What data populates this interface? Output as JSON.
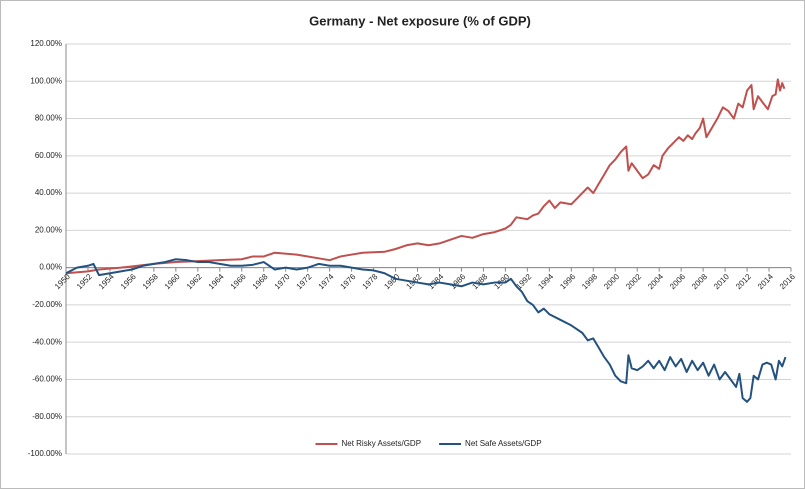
{
  "chart_data": {
    "type": "line",
    "title": "Germany - Net exposure (% of GDP)",
    "xlim": [
      1950,
      2016
    ],
    "xticks": [
      1950,
      1952,
      1954,
      1956,
      1958,
      1960,
      1962,
      1964,
      1966,
      1968,
      1970,
      1972,
      1974,
      1976,
      1978,
      1980,
      1982,
      1984,
      1986,
      1988,
      1990,
      1992,
      1994,
      1996,
      1998,
      2000,
      2002,
      2004,
      2006,
      2008,
      2010,
      2012,
      2014,
      2016
    ],
    "ylim": [
      -100,
      120
    ],
    "yticks": [
      {
        "value": -100,
        "label": "-100.00%"
      },
      {
        "value": -80,
        "label": "-80.00%"
      },
      {
        "value": -60,
        "label": "-60.00%"
      },
      {
        "value": -40,
        "label": "-40.00%"
      },
      {
        "value": -20,
        "label": "-20.00%"
      },
      {
        "value": 0,
        "label": "0.00%"
      },
      {
        "value": 20,
        "label": "20.00%"
      },
      {
        "value": 40,
        "label": "40.00%"
      },
      {
        "value": 60,
        "label": "60.00%"
      },
      {
        "value": 80,
        "label": "80.00%"
      },
      {
        "value": 100,
        "label": "100.00%"
      },
      {
        "value": 120,
        "label": "120.00%"
      }
    ],
    "grid": true,
    "legend": "bottom",
    "series": [
      {
        "name": "Net Risky Assets/GDP",
        "color": "#c0504d",
        "x": [
          1950,
          1952,
          1953,
          1955,
          1958,
          1960,
          1962,
          1964,
          1966,
          1967,
          1968,
          1969,
          1971,
          1973,
          1974,
          1975,
          1977,
          1979,
          1980,
          1981,
          1982,
          1983,
          1984,
          1985,
          1986,
          1987,
          1988,
          1989,
          1990,
          1990.5,
          1991,
          1992,
          1992.5,
          1993,
          1993.5,
          1994,
          1994.5,
          1995,
          1996,
          1996.5,
          1997,
          1997.5,
          1998,
          1998.5,
          1999,
          1999.5,
          2000,
          2000.5,
          2001,
          2001.2,
          2001.5,
          2002,
          2002.5,
          2003,
          2003.5,
          2004,
          2004.3,
          2004.8,
          2005.3,
          2005.8,
          2006.2,
          2006.6,
          2007,
          2007.3,
          2007.7,
          2008,
          2008.3,
          2008.8,
          2009.3,
          2009.8,
          2010.3,
          2010.8,
          2011.2,
          2011.6,
          2012,
          2012.4,
          2012.6,
          2013,
          2013.5,
          2013.9,
          2014.3,
          2014.6,
          2014.8,
          2015,
          2015.2,
          2015.4
        ],
        "values": [
          -3,
          -2,
          -1,
          0,
          2,
          3,
          3.5,
          4,
          4.5,
          6,
          6,
          8,
          7,
          5,
          4,
          6,
          8,
          8.5,
          10,
          12,
          13,
          12,
          13,
          15,
          17,
          16,
          18,
          19,
          21,
          23,
          27,
          26,
          28,
          29,
          33,
          36,
          32,
          35,
          34,
          37,
          40,
          43,
          40,
          45,
          50,
          55,
          58,
          62,
          65,
          52,
          56,
          52,
          48,
          50,
          55,
          53,
          60,
          64,
          67,
          70,
          68,
          71,
          69,
          72,
          75,
          80,
          70,
          75,
          80,
          86,
          84,
          80,
          88,
          86,
          95,
          98,
          85,
          92,
          88,
          85,
          92,
          93,
          101,
          95,
          99,
          96
        ]
      },
      {
        "name": "Net Safe Assets/GDP",
        "color": "#24527f",
        "x": [
          1950,
          1951,
          1952,
          1952.5,
          1953,
          1954,
          1955,
          1956,
          1957,
          1958,
          1959,
          1960,
          1961,
          1962,
          1963,
          1964,
          1965,
          1966,
          1967,
          1968,
          1969,
          1970,
          1971,
          1972,
          1973,
          1974,
          1975,
          1976,
          1977,
          1978,
          1979,
          1980,
          1981,
          1982,
          1983,
          1984,
          1985,
          1986,
          1987,
          1988,
          1989,
          1990,
          1990.5,
          1991,
          1991.5,
          1992,
          1992.5,
          1993,
          1993.5,
          1994,
          1995,
          1996,
          1997,
          1997.5,
          1998,
          1998.5,
          1999,
          1999.5,
          2000,
          2000.5,
          2001,
          2001.2,
          2001.5,
          2002,
          2002.5,
          2003,
          2003.5,
          2004,
          2004.5,
          2005,
          2005.5,
          2006,
          2006.5,
          2007,
          2007.5,
          2008,
          2008.5,
          2009,
          2009.5,
          2010,
          2010.5,
          2011,
          2011.3,
          2011.6,
          2012,
          2012.3,
          2012.6,
          2013,
          2013.4,
          2013.8,
          2014.2,
          2014.6,
          2014.9,
          2015.2,
          2015.5
        ],
        "values": [
          -3,
          0,
          1,
          2,
          -4,
          -3,
          -2,
          -1,
          1,
          2,
          3,
          4.5,
          4,
          3,
          3,
          2,
          1,
          1,
          1.5,
          3,
          -1,
          0,
          -1,
          0,
          2,
          1,
          1,
          0,
          -1,
          -1.5,
          -3,
          -6,
          -7,
          -8,
          -9,
          -8,
          -9,
          -10,
          -8,
          -9,
          -8,
          -8,
          -6,
          -10,
          -13,
          -18,
          -20,
          -24,
          -22,
          -25,
          -28,
          -31,
          -35,
          -39,
          -38,
          -43,
          -48,
          -52,
          -58,
          -61,
          -62,
          -47,
          -54,
          -55,
          -53,
          -50,
          -54,
          -50,
          -55,
          -48,
          -53,
          -49,
          -56,
          -50,
          -55,
          -51,
          -58,
          -52,
          -60,
          -56,
          -60,
          -64,
          -57,
          -70,
          -72,
          -70,
          -58,
          -60,
          -52,
          -51,
          -52,
          -60,
          -50,
          -53,
          -48
        ]
      }
    ]
  }
}
